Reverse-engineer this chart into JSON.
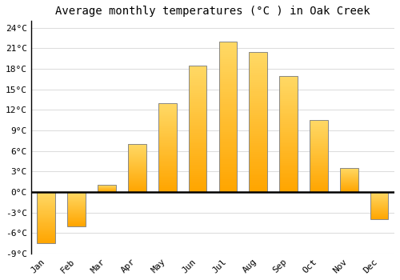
{
  "title": "Average monthly temperatures (°C ) in Oak Creek",
  "months": [
    "Jan",
    "Feb",
    "Mar",
    "Apr",
    "May",
    "Jun",
    "Jul",
    "Aug",
    "Sep",
    "Oct",
    "Nov",
    "Dec"
  ],
  "values": [
    -7.5,
    -5.0,
    1.0,
    7.0,
    13.0,
    18.5,
    22.0,
    20.5,
    17.0,
    10.5,
    3.5,
    -4.0
  ],
  "bar_color_bottom": "#FFA500",
  "bar_color_top": "#FFD966",
  "bar_edge_color": "#888888",
  "ylim": [
    -9,
    25
  ],
  "yticks": [
    -9,
    -6,
    -3,
    0,
    3,
    6,
    9,
    12,
    15,
    18,
    21,
    24
  ],
  "ytick_labels": [
    "-9°C",
    "-6°C",
    "-3°C",
    "0°C",
    "3°C",
    "6°C",
    "9°C",
    "12°C",
    "15°C",
    "18°C",
    "21°C",
    "24°C"
  ],
  "background_color": "#ffffff",
  "grid_color": "#dddddd",
  "title_fontsize": 10,
  "tick_fontsize": 8,
  "bar_width": 0.6
}
